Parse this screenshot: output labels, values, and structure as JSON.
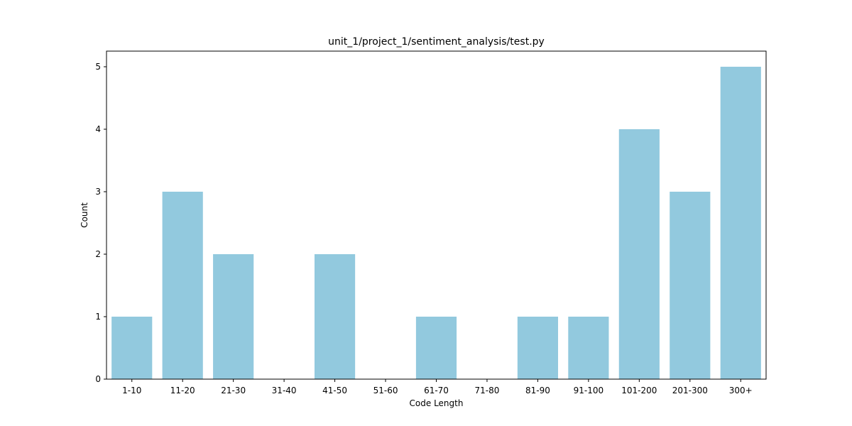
{
  "chart_data": {
    "type": "bar",
    "title": "unit_1/project_1/sentiment_analysis/test.py",
    "xlabel": "Code Length",
    "ylabel": "Count",
    "categories": [
      "1-10",
      "11-20",
      "21-30",
      "31-40",
      "41-50",
      "51-60",
      "61-70",
      "71-80",
      "81-90",
      "91-100",
      "101-200",
      "201-300",
      "300+"
    ],
    "values": [
      1,
      3,
      2,
      0,
      2,
      0,
      1,
      0,
      1,
      1,
      4,
      3,
      5
    ],
    "ylim": [
      0,
      5.25
    ],
    "yticks": [
      0,
      1,
      2,
      3,
      4,
      5
    ],
    "bar_color": "#92c9de",
    "grid": false,
    "legend": "none"
  }
}
